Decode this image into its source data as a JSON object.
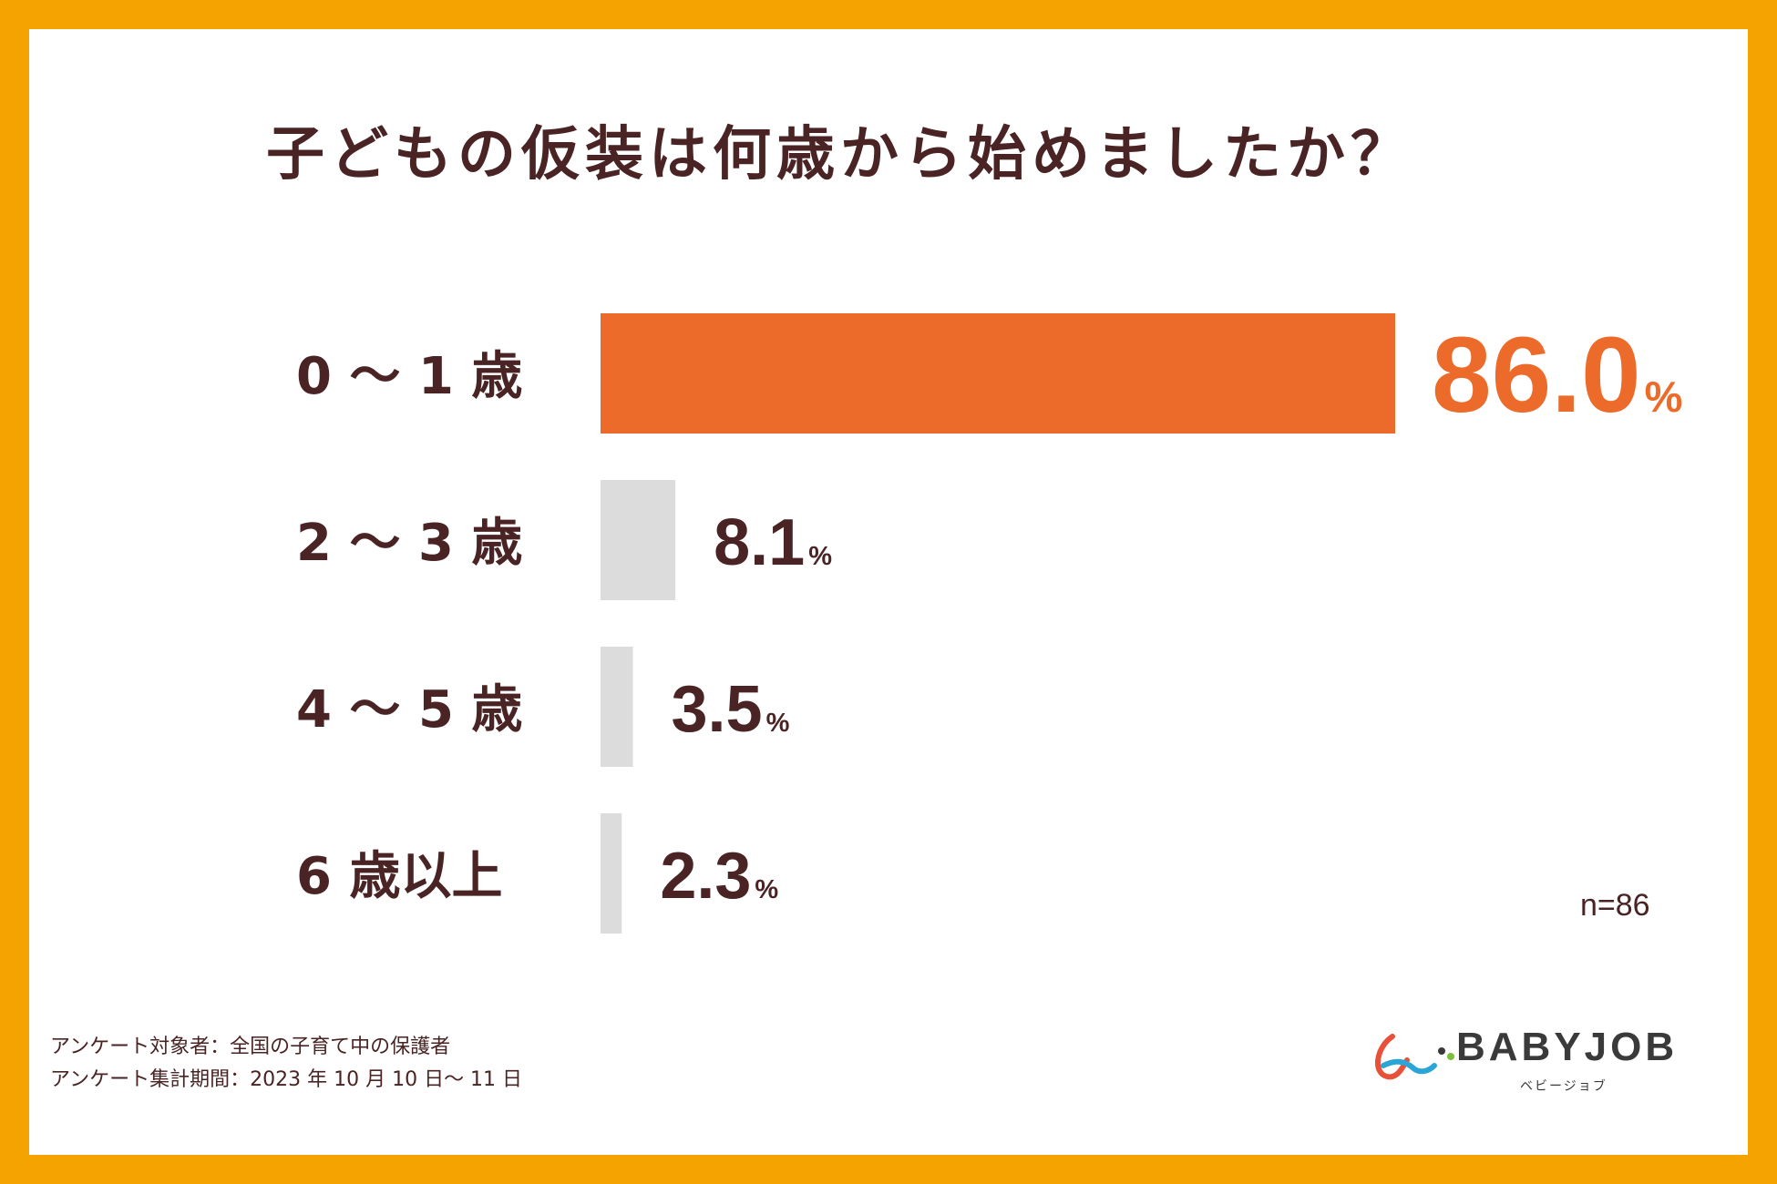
{
  "colors": {
    "frame": "#f4a300",
    "highlight": "#ec6b2a",
    "bar_other": "#dcdcdc",
    "text": "#4a2424"
  },
  "chart_data": {
    "type": "bar",
    "orientation": "horizontal",
    "title": "子どもの仮装は何歳から始めましたか？",
    "categories": [
      "0 ～ 1 歳",
      "2 ～ 3 歳",
      "4 ～ 5 歳",
      "6 歳以上"
    ],
    "values": [
      86.0,
      8.1,
      3.5,
      2.3
    ],
    "value_labels": [
      "86.0",
      "8.1",
      "3.5",
      "2.3"
    ],
    "unit": "%",
    "highlight_index": 0,
    "xlim": [
      0,
      86
    ],
    "grid": false,
    "note": "n=86"
  },
  "footer": {
    "line1": "アンケート対象者：全国の子育て中の保護者",
    "line2": "アンケート集計期間：2023 年 10 月 10 日～ 11 日"
  },
  "logo": {
    "name": "BABYJOB",
    "kana": "ベビージョブ"
  }
}
